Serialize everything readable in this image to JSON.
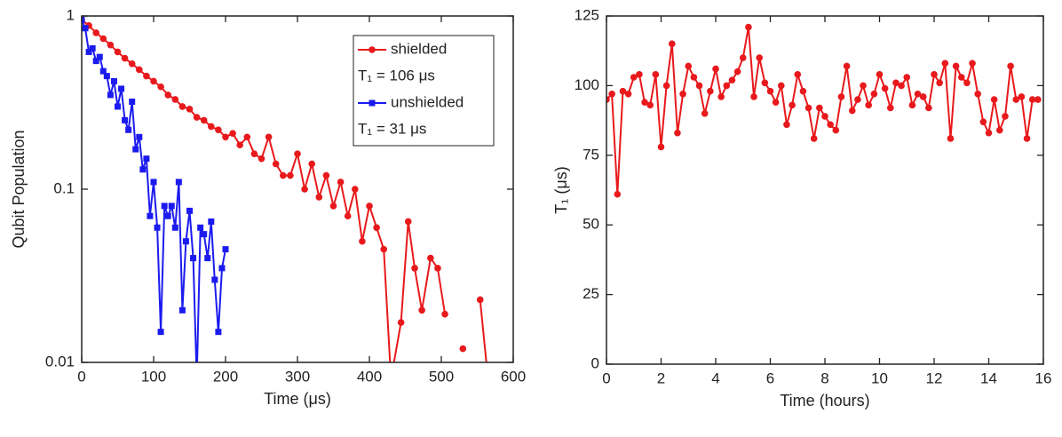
{
  "chart_data": [
    {
      "type": "line",
      "y_scale": "log",
      "x_label": "Time (μs)",
      "y_label": "Qubit Population",
      "xlim": [
        0,
        600
      ],
      "xticks": [
        0,
        100,
        200,
        300,
        400,
        500,
        600
      ],
      "ylim": [
        0.01,
        1
      ],
      "yticks": [
        0.01,
        0.1,
        1
      ],
      "legend": "upper right",
      "series": [
        {
          "name": "shielded",
          "color": "#e8191c",
          "marker": "circle",
          "note": "T₁ = 106 μs",
          "x": [
            0,
            10,
            20,
            30,
            40,
            50,
            60,
            70,
            80,
            90,
            100,
            110,
            120,
            130,
            140,
            150,
            160,
            170,
            180,
            190,
            200,
            210,
            220,
            230,
            240,
            250,
            260,
            270,
            280,
            290,
            300,
            310,
            320,
            330,
            340,
            350,
            360,
            370,
            380,
            390,
            400,
            410,
            420,
            430,
            444,
            454,
            463,
            473,
            485,
            495,
            505,
            516,
            530,
            549,
            554,
            565,
            577
          ],
          "values": [
            0.95,
            0.88,
            0.8,
            0.74,
            0.68,
            0.62,
            0.57,
            0.53,
            0.49,
            0.45,
            0.42,
            0.39,
            0.35,
            0.33,
            0.3,
            0.29,
            0.26,
            0.25,
            0.23,
            0.22,
            0.2,
            0.21,
            0.18,
            0.2,
            0.16,
            0.15,
            0.2,
            0.14,
            0.12,
            0.12,
            0.16,
            0.1,
            0.14,
            0.09,
            0.12,
            0.08,
            0.11,
            0.07,
            0.1,
            0.05,
            0.08,
            0.06,
            0.045,
            0.008,
            0.017,
            0.065,
            0.035,
            0.02,
            0.04,
            0.035,
            0.019,
            null,
            0.012,
            null,
            0.023,
            0.008,
            null
          ]
        },
        {
          "name": "unshielded",
          "color": "#1b1bef",
          "marker": "square",
          "note": "T₁ = 31 μs",
          "x": [
            0,
            5,
            10,
            15,
            20,
            25,
            30,
            35,
            40,
            45,
            50,
            55,
            60,
            65,
            70,
            75,
            80,
            85,
            90,
            95,
            100,
            105,
            110,
            115,
            120,
            125,
            130,
            135,
            140,
            145,
            150,
            155,
            160,
            165,
            170,
            175,
            180,
            185,
            190,
            195,
            200
          ],
          "values": [
            0.95,
            0.85,
            0.62,
            0.65,
            0.55,
            0.58,
            0.48,
            0.45,
            0.35,
            0.42,
            0.3,
            0.38,
            0.25,
            0.22,
            0.32,
            0.17,
            0.2,
            0.13,
            0.15,
            0.07,
            0.11,
            0.06,
            0.015,
            0.08,
            0.07,
            0.08,
            0.06,
            0.11,
            0.02,
            0.05,
            0.075,
            0.04,
            0.008,
            0.06,
            0.055,
            0.04,
            0.065,
            0.03,
            0.015,
            0.035,
            0.045
          ]
        }
      ]
    },
    {
      "type": "line",
      "x_label": "Time (hours)",
      "y_label": "T₁ (μs)",
      "xlim": [
        0,
        16
      ],
      "xticks": [
        0,
        2,
        4,
        6,
        8,
        10,
        12,
        14,
        16
      ],
      "ylim": [
        0,
        125
      ],
      "yticks": [
        0,
        25,
        50,
        75,
        100,
        125
      ],
      "series": [
        {
          "color": "#e8191c",
          "marker": "circle",
          "x": [
            0,
            0.2,
            0.4,
            0.6,
            0.8,
            1.0,
            1.2,
            1.4,
            1.6,
            1.8,
            2.0,
            2.2,
            2.4,
            2.6,
            2.8,
            3.0,
            3.2,
            3.4,
            3.6,
            3.8,
            4.0,
            4.2,
            4.4,
            4.6,
            4.8,
            5.0,
            5.2,
            5.4,
            5.6,
            5.8,
            6.0,
            6.2,
            6.4,
            6.6,
            6.8,
            7.0,
            7.2,
            7.4,
            7.6,
            7.8,
            8.0,
            8.2,
            8.4,
            8.6,
            8.8,
            9.0,
            9.2,
            9.4,
            9.6,
            9.8,
            10.0,
            10.2,
            10.4,
            10.6,
            10.8,
            11.0,
            11.2,
            11.4,
            11.6,
            11.8,
            12.0,
            12.2,
            12.4,
            12.6,
            12.8,
            13.0,
            13.2,
            13.4,
            13.6,
            13.8,
            14.0,
            14.2,
            14.4,
            14.6,
            14.8,
            15.0,
            15.2,
            15.4,
            15.6,
            15.8
          ],
          "values": [
            95,
            97,
            61,
            98,
            97,
            103,
            104,
            94,
            93,
            104,
            78,
            100,
            115,
            83,
            97,
            107,
            103,
            100,
            90,
            98,
            106,
            96,
            100,
            102,
            105,
            110,
            121,
            96,
            110,
            101,
            98,
            94,
            100,
            86,
            93,
            104,
            98,
            92,
            81,
            92,
            89,
            86,
            84,
            96,
            107,
            91,
            95,
            100,
            93,
            97,
            104,
            99,
            92,
            101,
            100,
            103,
            93,
            97,
            96,
            92,
            104,
            101,
            108,
            81,
            107,
            103,
            101,
            108,
            97,
            87,
            83,
            95,
            84,
            89,
            107,
            95,
            96,
            81,
            95,
            95
          ]
        }
      ]
    }
  ]
}
